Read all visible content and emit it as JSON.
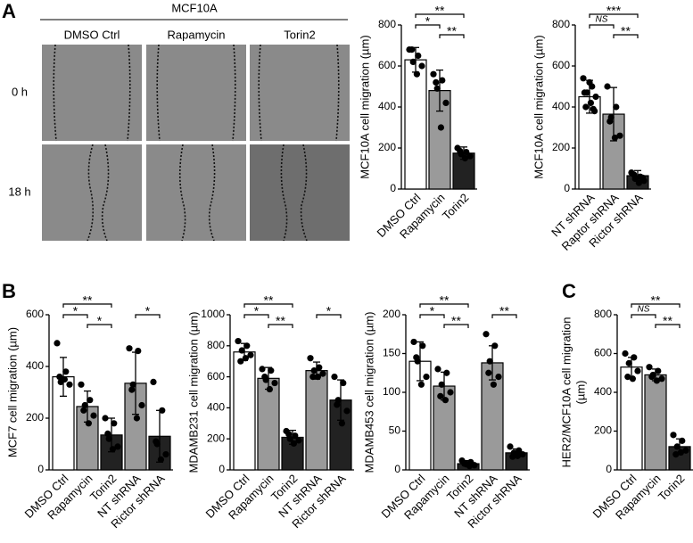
{
  "panel_labels": [
    "A",
    "B",
    "C"
  ],
  "images": {
    "title": "MCF10A",
    "columns": [
      "DMSO Ctrl",
      "Rapamycin",
      "Torin2"
    ],
    "rows": [
      "0 h",
      "18 h"
    ]
  },
  "chart_data": [
    {
      "type": "bar",
      "ylabel": "MCF10A cell migration (µm)",
      "categories": [
        "DMSO Ctrl",
        "Rapamycin",
        "Torin2"
      ],
      "values": [
        630,
        480,
        175
      ],
      "errors": [
        60,
        100,
        30
      ],
      "points": [
        [
          680,
          650,
          620,
          600,
          560,
          680
        ],
        [
          560,
          530,
          490,
          420,
          300,
          520
        ],
        [
          200,
          180,
          170,
          160,
          150,
          185
        ]
      ],
      "colors": [
        "#ffffff",
        "#9a9a9a",
        "#222222"
      ],
      "ylim": [
        0,
        800
      ],
      "yticks": [
        0,
        200,
        400,
        600,
        800
      ],
      "brackets": [
        {
          "from": 0,
          "to": 2,
          "label": "**"
        },
        {
          "from": 0,
          "to": 1,
          "label": "*"
        },
        {
          "from": 1,
          "to": 2,
          "label": "**"
        }
      ]
    },
    {
      "type": "bar",
      "ylabel": "MCF10A cell migration (µm)",
      "categories": [
        "NT shRNA",
        "Raptor shRNA",
        "Rictor shRNA"
      ],
      "values": [
        450,
        365,
        65
      ],
      "errors": [
        80,
        130,
        25
      ],
      "points": [
        [
          540,
          500,
          470,
          450,
          420,
          400,
          380,
          520,
          470,
          390
        ],
        [
          500,
          400,
          350,
          260,
          250,
          330
        ],
        [
          80,
          60,
          50,
          40,
          30,
          70,
          55
        ]
      ],
      "colors": [
        "#ffffff",
        "#9a9a9a",
        "#222222"
      ],
      "ylim": [
        0,
        800
      ],
      "yticks": [
        0,
        200,
        400,
        600,
        800
      ],
      "brackets": [
        {
          "from": 0,
          "to": 2,
          "label": "***"
        },
        {
          "from": 0,
          "to": 1,
          "label": "NS"
        },
        {
          "from": 1,
          "to": 2,
          "label": "**"
        }
      ]
    },
    {
      "type": "bar",
      "ylabel": "MCF7 cell migration (µm)",
      "categories": [
        "DMSO Ctrl",
        "Rapamycin",
        "Torin2",
        "NT shRNA",
        "Rictor shRNA"
      ],
      "values": [
        360,
        245,
        135,
        335,
        130
      ],
      "errors": [
        75,
        60,
        65,
        120,
        100
      ],
      "points": [
        [
          490,
          380,
          340,
          330,
          350,
          360
        ],
        [
          330,
          270,
          250,
          210,
          180,
          230
        ],
        [
          200,
          180,
          120,
          90,
          80,
          140
        ],
        [
          470,
          460,
          330,
          250,
          200,
          310
        ],
        [
          340,
          230,
          100,
          60,
          40,
          110
        ]
      ],
      "colors": [
        "#ffffff",
        "#9a9a9a",
        "#222222",
        "#9a9a9a",
        "#222222"
      ],
      "ylim": [
        0,
        600
      ],
      "yticks": [
        0,
        200,
        400,
        600
      ],
      "brackets": [
        {
          "from": 0,
          "to": 2,
          "label": "**"
        },
        {
          "from": 0,
          "to": 1,
          "label": "*"
        },
        {
          "from": 1,
          "to": 2,
          "label": "*"
        },
        {
          "from": 3,
          "to": 4,
          "label": "*"
        }
      ]
    },
    {
      "type": "bar",
      "ylabel": "MDAMB231 cell migration (µm)",
      "categories": [
        "DMSO Ctrl",
        "Rapamycin",
        "Torin2",
        "NT shRNA",
        "Rictor shRNA"
      ],
      "values": [
        760,
        590,
        210,
        640,
        450
      ],
      "errors": [
        55,
        70,
        45,
        55,
        130
      ],
      "points": [
        [
          830,
          800,
          770,
          740,
          720,
          700
        ],
        [
          650,
          640,
          580,
          560,
          520,
          600
        ],
        [
          250,
          220,
          200,
          190,
          170,
          230
        ],
        [
          720,
          660,
          640,
          620,
          600,
          600
        ],
        [
          600,
          560,
          450,
          380,
          300,
          420
        ]
      ],
      "colors": [
        "#ffffff",
        "#9a9a9a",
        "#222222",
        "#9a9a9a",
        "#222222"
      ],
      "ylim": [
        0,
        1000
      ],
      "yticks": [
        0,
        200,
        400,
        600,
        800,
        1000
      ],
      "brackets": [
        {
          "from": 0,
          "to": 2,
          "label": "**"
        },
        {
          "from": 0,
          "to": 1,
          "label": "*"
        },
        {
          "from": 1,
          "to": 2,
          "label": "**"
        },
        {
          "from": 3,
          "to": 4,
          "label": "*"
        }
      ]
    },
    {
      "type": "bar",
      "ylabel": "MDAMB453 cell migration (µm)",
      "categories": [
        "DMSO Ctrl",
        "Rapamycin",
        "Torin2",
        "NT shRNA",
        "Rictor shRNA"
      ],
      "values": [
        140,
        108,
        8,
        138,
        22
      ],
      "errors": [
        25,
        18,
        4,
        22,
        5
      ],
      "points": [
        [
          165,
          160,
          140,
          120,
          110,
          145
        ],
        [
          130,
          125,
          110,
          100,
          90,
          95
        ],
        [
          12,
          10,
          8,
          6,
          5,
          8
        ],
        [
          175,
          160,
          140,
          120,
          110,
          125
        ],
        [
          30,
          25,
          22,
          20,
          18,
          17
        ]
      ],
      "colors": [
        "#ffffff",
        "#9a9a9a",
        "#222222",
        "#9a9a9a",
        "#222222"
      ],
      "ylim": [
        0,
        200
      ],
      "yticks": [
        0,
        50,
        100,
        150,
        200
      ],
      "brackets": [
        {
          "from": 0,
          "to": 2,
          "label": "**"
        },
        {
          "from": 0,
          "to": 1,
          "label": "*"
        },
        {
          "from": 1,
          "to": 2,
          "label": "**"
        },
        {
          "from": 3,
          "to": 4,
          "label": "**"
        }
      ]
    },
    {
      "type": "bar",
      "ylabel": [
        "HER2/MCF10A cell migration",
        "(µm)"
      ],
      "categories": [
        "DMSO Ctrl",
        "Rapamycin",
        "Torin2"
      ],
      "values": [
        530,
        490,
        120
      ],
      "errors": [
        50,
        30,
        40
      ],
      "points": [
        [
          600,
          580,
          550,
          510,
          470,
          480
        ],
        [
          530,
          510,
          490,
          470,
          460,
          480
        ],
        [
          180,
          150,
          120,
          100,
          90,
          80
        ]
      ],
      "colors": [
        "#ffffff",
        "#9a9a9a",
        "#222222"
      ],
      "ylim": [
        0,
        800
      ],
      "yticks": [
        0,
        200,
        400,
        600,
        800
      ],
      "brackets": [
        {
          "from": 0,
          "to": 2,
          "label": "**"
        },
        {
          "from": 0,
          "to": 1,
          "label": "NS"
        },
        {
          "from": 1,
          "to": 2,
          "label": "**"
        }
      ]
    }
  ]
}
